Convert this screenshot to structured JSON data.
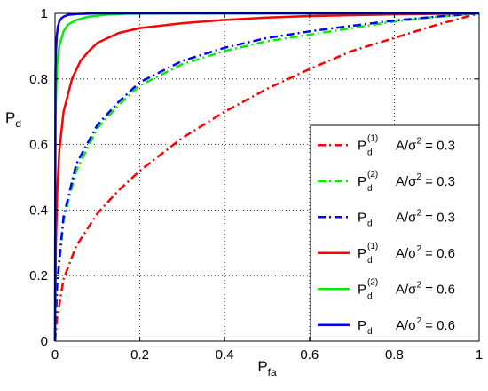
{
  "chart_data": {
    "type": "line",
    "xlabel": "P",
    "xlabel_sub": "fa",
    "ylabel": "P",
    "ylabel_sub": "d",
    "xlim": [
      0,
      1
    ],
    "ylim": [
      0,
      1
    ],
    "x_ticks": [
      "0",
      "0.2",
      "0.4",
      "0.6",
      "0.8",
      "1"
    ],
    "y_ticks": [
      "0",
      "0.2",
      "0.4",
      "0.6",
      "0.8",
      "1"
    ],
    "grid": true,
    "legend_position": "right",
    "series": [
      {
        "name": "P_d^(1)  A/σ^2 = 0.3",
        "legend": {
          "base": "P",
          "sub": "d",
          "sup": "(1)",
          "text": "A/σ",
          "pow": "2",
          "tail": " = 0.3"
        },
        "color": "#ff0000",
        "style": "dashdot",
        "x": [
          0,
          0.005,
          0.02,
          0.05,
          0.1,
          0.15,
          0.2,
          0.3,
          0.4,
          0.5,
          0.6,
          0.7,
          0.8,
          0.9,
          1.0
        ],
        "y": [
          0,
          0.07,
          0.19,
          0.29,
          0.39,
          0.46,
          0.52,
          0.62,
          0.7,
          0.77,
          0.83,
          0.885,
          0.925,
          0.965,
          1.0
        ]
      },
      {
        "name": "P_d^(2)  A/σ^2 = 0.3",
        "legend": {
          "base": "P",
          "sub": "d",
          "sup": "(2)",
          "text": "A/σ",
          "pow": "2",
          "tail": " = 0.3"
        },
        "color": "#00ee00",
        "style": "dashdot",
        "x": [
          0,
          0.005,
          0.02,
          0.05,
          0.1,
          0.15,
          0.2,
          0.3,
          0.4,
          0.5,
          0.6,
          0.7,
          0.8,
          0.9,
          1.0
        ],
        "y": [
          0,
          0.17,
          0.37,
          0.52,
          0.65,
          0.72,
          0.78,
          0.845,
          0.885,
          0.915,
          0.935,
          0.955,
          0.975,
          0.99,
          1.0
        ]
      },
      {
        "name": "P_d  A/σ^2 = 0.3",
        "legend": {
          "base": "P",
          "sub": "d",
          "sup": "",
          "text": "A/σ",
          "pow": "2",
          "tail": " = 0.3"
        },
        "color": "#0000ff",
        "style": "dashdot",
        "x": [
          0,
          0.005,
          0.02,
          0.05,
          0.1,
          0.15,
          0.2,
          0.3,
          0.4,
          0.5,
          0.6,
          0.7,
          0.8,
          0.9,
          1.0
        ],
        "y": [
          0,
          0.18,
          0.38,
          0.54,
          0.66,
          0.73,
          0.79,
          0.855,
          0.895,
          0.925,
          0.945,
          0.962,
          0.978,
          0.99,
          1.0
        ]
      },
      {
        "name": "P_d^(1)  A/σ^2 = 0.6",
        "legend": {
          "base": "P",
          "sub": "d",
          "sup": "(1)",
          "text": "A/σ",
          "pow": "2",
          "tail": " = 0.6"
        },
        "color": "#ff0000",
        "style": "solid",
        "x": [
          0,
          0.002,
          0.005,
          0.01,
          0.02,
          0.04,
          0.06,
          0.08,
          0.1,
          0.15,
          0.2,
          0.3,
          0.4,
          0.5,
          0.6,
          0.8,
          1.0
        ],
        "y": [
          0,
          0.3,
          0.45,
          0.58,
          0.7,
          0.8,
          0.855,
          0.885,
          0.91,
          0.94,
          0.955,
          0.97,
          0.98,
          0.987,
          0.992,
          0.997,
          1.0
        ]
      },
      {
        "name": "P_d^(2)  A/σ^2 = 0.6",
        "legend": {
          "base": "P",
          "sub": "d",
          "sup": "(2)",
          "text": "A/σ",
          "pow": "2",
          "tail": " = 0.6"
        },
        "color": "#00ee00",
        "style": "solid",
        "x": [
          0,
          0.001,
          0.003,
          0.005,
          0.01,
          0.02,
          0.03,
          0.05,
          0.08,
          0.12,
          0.17,
          0.3,
          0.6,
          1.0
        ],
        "y": [
          0,
          0.68,
          0.78,
          0.84,
          0.9,
          0.945,
          0.965,
          0.98,
          0.99,
          0.996,
          0.999,
          1.0,
          1.0,
          1.0
        ]
      },
      {
        "name": "P_d  A/σ^2 = 0.6",
        "legend": {
          "base": "P",
          "sub": "d",
          "sup": "",
          "text": "A/σ",
          "pow": "2",
          "tail": " = 0.6"
        },
        "color": "#0000ff",
        "style": "solid",
        "x": [
          0,
          0.001,
          0.002,
          0.004,
          0.007,
          0.01,
          0.015,
          0.02,
          0.03,
          0.05,
          0.1,
          0.3,
          1.0
        ],
        "y": [
          0,
          0.82,
          0.88,
          0.93,
          0.96,
          0.975,
          0.985,
          0.99,
          0.995,
          0.998,
          1.0,
          1.0,
          1.0
        ]
      }
    ]
  }
}
